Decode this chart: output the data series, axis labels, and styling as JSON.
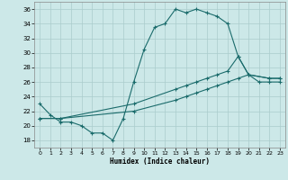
{
  "xlabel": "Humidex (Indice chaleur)",
  "bg_color": "#cce8e8",
  "grid_color": "#aacccc",
  "line_color": "#1a6b6b",
  "xlim": [
    -0.5,
    23.5
  ],
  "ylim": [
    17,
    37
  ],
  "yticks": [
    18,
    20,
    22,
    24,
    26,
    28,
    30,
    32,
    34,
    36
  ],
  "xticks": [
    0,
    1,
    2,
    3,
    4,
    5,
    6,
    7,
    8,
    9,
    10,
    11,
    12,
    13,
    14,
    15,
    16,
    17,
    18,
    19,
    20,
    21,
    22,
    23
  ],
  "curve1_x": [
    0,
    1,
    2,
    3,
    4,
    5,
    6,
    7,
    8,
    9,
    10,
    11,
    12,
    13,
    14,
    15,
    16,
    17,
    18,
    19,
    20,
    21,
    22,
    23
  ],
  "curve1_y": [
    23,
    21.5,
    20.5,
    20.5,
    20,
    19,
    19,
    18,
    21,
    26,
    30.5,
    33.5,
    34,
    36,
    35.5,
    36,
    35.5,
    35,
    34,
    29.5,
    27,
    26,
    26,
    26
  ],
  "curve2_x": [
    0,
    2,
    9,
    13,
    14,
    15,
    16,
    17,
    18,
    19,
    20,
    22,
    23
  ],
  "curve2_y": [
    21,
    21,
    23,
    25,
    25.5,
    26,
    26.5,
    27,
    27.5,
    29.5,
    27,
    26.5,
    26.5
  ],
  "curve3_x": [
    0,
    2,
    9,
    13,
    14,
    15,
    16,
    17,
    18,
    19,
    20,
    22,
    23
  ],
  "curve3_y": [
    21,
    21,
    22,
    23.5,
    24,
    24.5,
    25,
    25.5,
    26,
    26.5,
    27,
    26.5,
    26.5
  ]
}
